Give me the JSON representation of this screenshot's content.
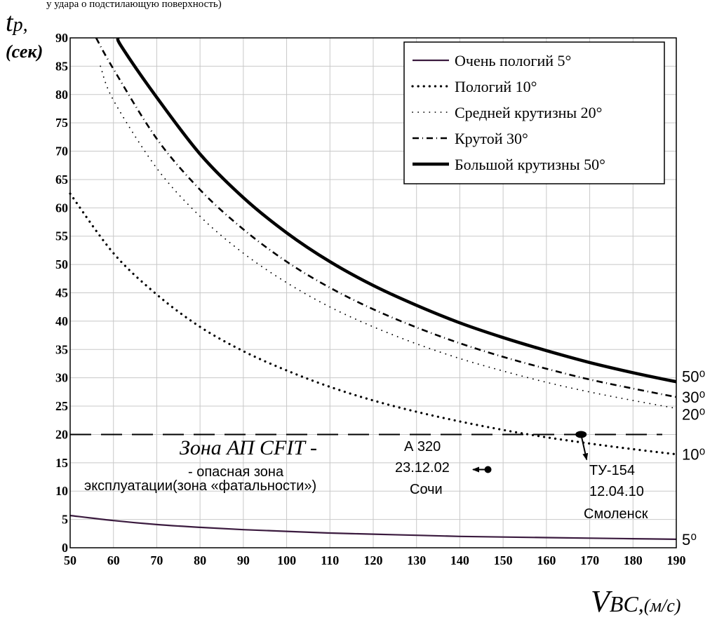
{
  "header_text": "у удара о подстилающую поверхность)",
  "chart_data": {
    "type": "line",
    "y_title_main": "t",
    "y_title_sub": "p",
    "y_title_unit": "(сек)",
    "x_title_main": "V",
    "x_title_sub": "BC,",
    "x_title_unit": "(м/с)",
    "xlim": [
      50,
      190
    ],
    "ylim": [
      0,
      90
    ],
    "x_ticks": [
      "50",
      "60",
      "70",
      "80",
      "90",
      "100",
      "110",
      "120",
      "130",
      "140",
      "150",
      "160",
      "170",
      "180",
      "190"
    ],
    "y_ticks": [
      "0",
      "5",
      "10",
      "15",
      "20",
      "25",
      "30",
      "35",
      "40",
      "45",
      "50",
      "55",
      "60",
      "65",
      "70",
      "75",
      "80",
      "85",
      "90"
    ],
    "grid": true,
    "legend_position": "top-right",
    "series": [
      {
        "name": "Очень пологий 5°",
        "style": "solid",
        "color": "#3a1a3e",
        "end_label": "5⁰",
        "x": [
          50,
          60,
          70,
          80,
          90,
          100,
          110,
          120,
          130,
          140,
          150,
          160,
          170,
          180,
          190
        ],
        "y": [
          5.7,
          4.8,
          4.1,
          3.6,
          3.2,
          2.9,
          2.6,
          2.4,
          2.2,
          2.0,
          1.9,
          1.8,
          1.7,
          1.6,
          1.5
        ]
      },
      {
        "name": "Пологий 10°",
        "style": "dotted",
        "color": "#000000",
        "end_label": "10⁰",
        "x": [
          50,
          60,
          70,
          80,
          90,
          100,
          110,
          120,
          130,
          140,
          150,
          160,
          170,
          180,
          190
        ],
        "y": [
          62.5,
          52,
          44.7,
          39,
          34.7,
          31.3,
          28.4,
          26,
          24,
          22.3,
          20.8,
          19.5,
          18.4,
          17.4,
          16.5
        ]
      },
      {
        "name": "Средней крутизны 20°",
        "style": "fine-dotted",
        "color": "#000000",
        "end_label": "20⁰",
        "x": [
          57,
          60,
          70,
          80,
          90,
          100,
          110,
          120,
          130,
          140,
          150,
          160,
          170,
          180,
          190
        ],
        "y": [
          85,
          79,
          67,
          58.5,
          52,
          46.8,
          42.5,
          39,
          36,
          33.4,
          31.2,
          29.2,
          27.5,
          26,
          24.6
        ]
      },
      {
        "name": "Крутой 30°",
        "style": "dash-dot",
        "color": "#000000",
        "end_label": "30⁰",
        "x": [
          56,
          60,
          70,
          80,
          90,
          100,
          110,
          120,
          130,
          140,
          150,
          160,
          170,
          180,
          190
        ],
        "y": [
          90,
          84.5,
          72.2,
          63.2,
          56.2,
          50.5,
          45.9,
          42.1,
          38.9,
          36.1,
          33.7,
          31.6,
          29.7,
          28.1,
          26.6
        ]
      },
      {
        "name": "Большой крутизны 50°",
        "style": "thick-solid",
        "color": "#000000",
        "end_label": "50⁰",
        "x": [
          61,
          62,
          70,
          80,
          90,
          100,
          110,
          120,
          130,
          140,
          150,
          160,
          170,
          180,
          190
        ],
        "y": [
          90,
          88.3,
          79.5,
          69.5,
          61.8,
          55.6,
          50.5,
          46.3,
          42.8,
          39.7,
          37.1,
          34.8,
          32.7,
          30.9,
          29.3
        ]
      }
    ],
    "threshold": {
      "y": 20,
      "style": "dashed"
    },
    "zone_title": "Зона АП CFIT -",
    "zone_desc_line1": "- опасная зона",
    "zone_desc_line2": "эксплуатации(зона «фатальности»)",
    "annotations": [
      {
        "id": "a320",
        "lines": [
          "А 320",
          "23.12.02",
          "Сочи"
        ],
        "point": {
          "x": 146.5,
          "y": 13.8
        }
      },
      {
        "id": "tu154",
        "lines": [
          "ТУ-154",
          "12.04.10",
          "Смоленск"
        ],
        "point": {
          "x": 168,
          "y": 20
        }
      }
    ]
  }
}
